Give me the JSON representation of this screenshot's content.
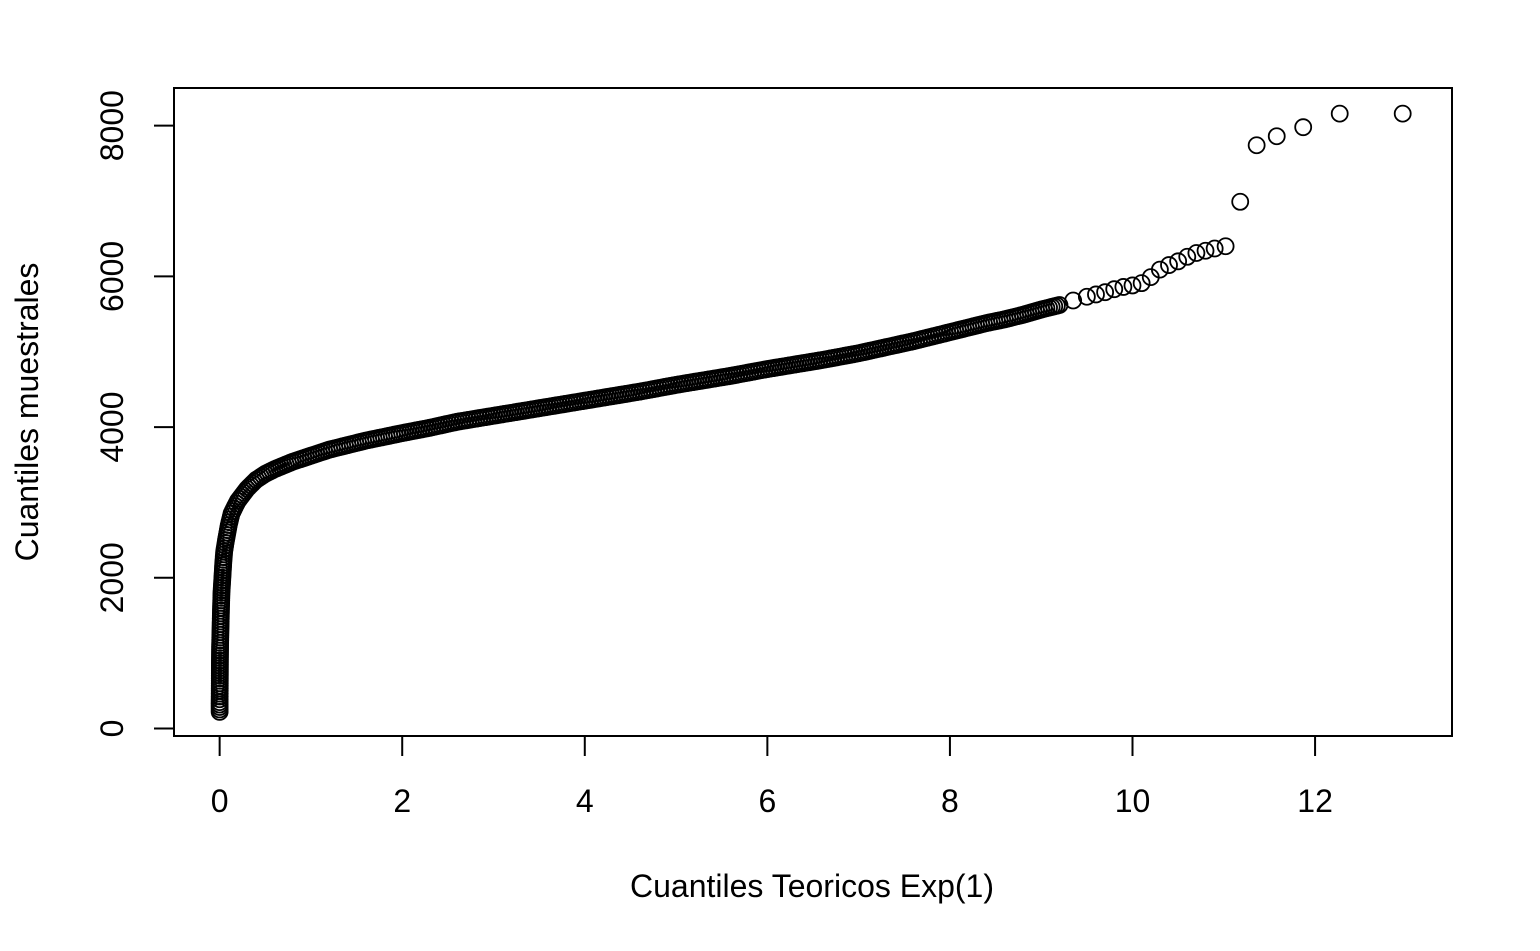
{
  "chart_data": {
    "type": "scatter",
    "title": "",
    "xlabel": "Cuantiles Teoricos Exp(1)",
    "ylabel": "Cuantiles muestrales",
    "xlim": [
      -0.5,
      13.5
    ],
    "ylim": [
      -100,
      8500
    ],
    "x_ticks": [
      0,
      2,
      4,
      6,
      8,
      10,
      12
    ],
    "x_tick_labels": [
      "0",
      "2",
      "4",
      "6",
      "8",
      "10",
      "12"
    ],
    "y_ticks": [
      0,
      2000,
      4000,
      6000,
      8000
    ],
    "y_tick_labels": [
      "0",
      "2000",
      "4000",
      "6000",
      "8000"
    ],
    "grid": false,
    "marker": "open-circle",
    "marker_color": "#000000",
    "series": [
      {
        "x": [
          0,
          0,
          0.001,
          0.002,
          0.003,
          0.005,
          0.01,
          0.015,
          0.02,
          0.03,
          0.04,
          0.05,
          0.07,
          0.1,
          0.13,
          0.17,
          0.2,
          0.25,
          0.3,
          0.4,
          0.5,
          0.6,
          0.7,
          0.8,
          1.0,
          1.2,
          1.4,
          1.6,
          1.8,
          2.0,
          2.3,
          2.6,
          3.0,
          3.3,
          3.6,
          4.0,
          4.3,
          4.6,
          5.0,
          5.3,
          5.6,
          6.0,
          6.3,
          6.6,
          7.0,
          7.3,
          7.6,
          8.0,
          8.2,
          8.4,
          8.6,
          8.8,
          9.0,
          9.2,
          9.35,
          9.5,
          9.6,
          9.7,
          9.8,
          9.9,
          10.0,
          10.1,
          10.2,
          10.3,
          10.4,
          10.5,
          10.6,
          10.7,
          10.8,
          10.9,
          11.02,
          11.18,
          11.36,
          11.58,
          11.87,
          12.27,
          12.96
        ],
        "y": [
          220,
          350,
          500,
          700,
          900,
          1100,
          1350,
          1600,
          1800,
          2000,
          2200,
          2350,
          2500,
          2700,
          2850,
          2950,
          3020,
          3100,
          3180,
          3300,
          3380,
          3440,
          3490,
          3540,
          3620,
          3700,
          3760,
          3820,
          3870,
          3920,
          3990,
          4070,
          4150,
          4210,
          4270,
          4350,
          4410,
          4470,
          4560,
          4620,
          4680,
          4770,
          4830,
          4890,
          4980,
          5060,
          5140,
          5260,
          5320,
          5380,
          5430,
          5490,
          5560,
          5620,
          5680,
          5730,
          5760,
          5790,
          5830,
          5860,
          5880,
          5910,
          5990,
          6090,
          6150,
          6200,
          6260,
          6310,
          6340,
          6370,
          6400,
          6990,
          7740,
          7860,
          7980,
          8160,
          8160
        ]
      }
    ]
  }
}
